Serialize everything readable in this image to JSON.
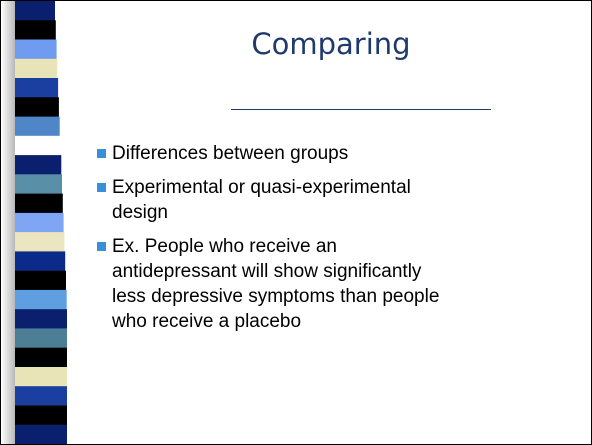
{
  "slide": {
    "title": "Comparing",
    "items": [
      [
        "Differences between groups"
      ],
      [
        "Experimental or quasi-experimental",
        "design"
      ],
      [
        "Ex. People who receive an",
        "antidepressant will show significantly",
        "less depressive symptoms than people",
        "who receive a placebo"
      ]
    ]
  }
}
